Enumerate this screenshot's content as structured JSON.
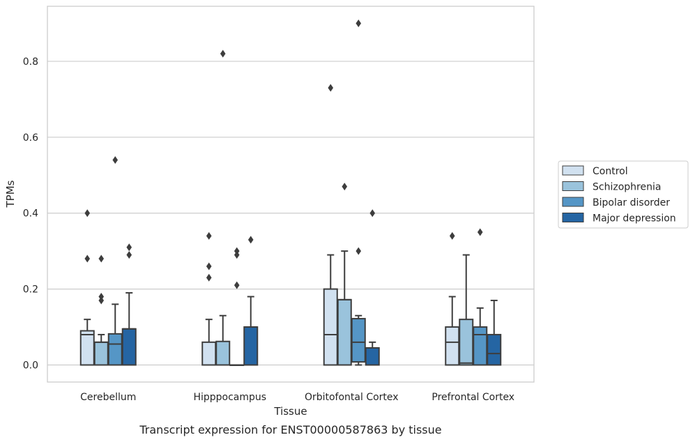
{
  "chart_data": {
    "type": "box",
    "title": "",
    "caption": "Transcript expression for ENST00000587863 by tissue",
    "xlabel": "Tissue",
    "ylabel": "TPMs",
    "ylim": [
      -0.045,
      0.945
    ],
    "yticks": [
      0.0,
      0.2,
      0.4,
      0.6,
      0.8
    ],
    "ytick_labels": [
      "0.0",
      "0.2",
      "0.4",
      "0.6",
      "0.8"
    ],
    "grid": "horizontal",
    "legend_position": "right",
    "categories": [
      "Cerebellum",
      "Hipppocampus",
      "Orbitofontal Cortex",
      "Prefrontal Cortex"
    ],
    "series": [
      {
        "name": "Control",
        "color": "#d1e1f0",
        "boxes": [
          {
            "whislo": 0,
            "q1": 0,
            "med": 0.08,
            "q3": 0.09,
            "whishi": 0.12,
            "fliers": [
              0.4,
              0.28
            ]
          },
          {
            "whislo": 0,
            "q1": 0,
            "med": 0,
            "q3": 0.06,
            "whishi": 0.12,
            "fliers": [
              0.34,
              0.26,
              0.23
            ]
          },
          {
            "whislo": 0,
            "q1": 0,
            "med": 0.08,
            "q3": 0.2,
            "whishi": 0.29,
            "fliers": [
              0.73
            ]
          },
          {
            "whislo": 0,
            "q1": 0,
            "med": 0.06,
            "q3": 0.1,
            "whishi": 0.18,
            "fliers": [
              0.34
            ]
          }
        ]
      },
      {
        "name": "Schizophrenia",
        "color": "#9ac3dc",
        "boxes": [
          {
            "whislo": 0,
            "q1": 0,
            "med": 0.06,
            "q3": 0.06,
            "whishi": 0.08,
            "fliers": [
              0.28,
              0.18,
              0.17
            ]
          },
          {
            "whislo": 0,
            "q1": 0,
            "med": 0,
            "q3": 0.062,
            "whishi": 0.13,
            "fliers": [
              0.82
            ]
          },
          {
            "whislo": 0,
            "q1": 0,
            "med": 0.172,
            "q3": 0.172,
            "whishi": 0.3,
            "fliers": [
              0.47
            ]
          },
          {
            "whislo": 0,
            "q1": 0,
            "med": 0.005,
            "q3": 0.12,
            "whishi": 0.29,
            "fliers": []
          }
        ]
      },
      {
        "name": "Bipolar disorder",
        "color": "#5596c6",
        "boxes": [
          {
            "whislo": 0,
            "q1": 0,
            "med": 0.055,
            "q3": 0.082,
            "whishi": 0.16,
            "fliers": [
              0.54
            ]
          },
          {
            "whislo": 0,
            "q1": 0,
            "med": 0,
            "q3": 0,
            "whishi": 0,
            "fliers": [
              0.3,
              0.29,
              0.21
            ]
          },
          {
            "whislo": 0,
            "q1": 0.008,
            "med": 0.06,
            "q3": 0.122,
            "whishi": 0.13,
            "fliers": [
              0.9,
              0.3
            ]
          },
          {
            "whislo": 0,
            "q1": 0,
            "med": 0.08,
            "q3": 0.1,
            "whishi": 0.15,
            "fliers": [
              0.35
            ]
          }
        ]
      },
      {
        "name": "Major depression",
        "color": "#2565a3",
        "boxes": [
          {
            "whislo": 0,
            "q1": 0,
            "med": 0.095,
            "q3": 0.095,
            "whishi": 0.19,
            "fliers": [
              0.31,
              0.29
            ]
          },
          {
            "whislo": 0,
            "q1": 0,
            "med": 0.1,
            "q3": 0.1,
            "whishi": 0.18,
            "fliers": [
              0.33
            ]
          },
          {
            "whislo": 0,
            "q1": 0,
            "med": 0.045,
            "q3": 0.045,
            "whishi": 0.06,
            "fliers": [
              0.4
            ]
          },
          {
            "whislo": 0,
            "q1": 0,
            "med": 0.03,
            "q3": 0.08,
            "whishi": 0.17,
            "fliers": []
          }
        ]
      }
    ]
  }
}
